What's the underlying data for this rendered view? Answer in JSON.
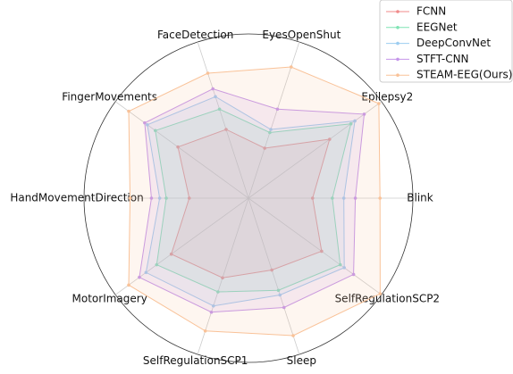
{
  "chart_data": {
    "type": "radar",
    "categories": [
      "Blink",
      "Epilepsy2",
      "EyesOpenShut",
      "FaceDetection",
      "FingerMovements",
      "HandMovementDirection",
      "MotorImagery",
      "SelfRegulationSCP1",
      "Sleep",
      "SelfRegulationSCP2"
    ],
    "ylim": [
      0,
      1
    ],
    "legend": "upper right",
    "series": [
      {
        "name": "FCNN",
        "color": "#f08a8a",
        "values": [
          0.39,
          0.61,
          0.32,
          0.44,
          0.53,
          0.36,
          0.58,
          0.51,
          0.46,
          0.55
        ]
      },
      {
        "name": "EEGNet",
        "color": "#7fe3b4",
        "values": [
          0.51,
          0.77,
          0.42,
          0.57,
          0.7,
          0.5,
          0.69,
          0.6,
          0.59,
          0.69
        ]
      },
      {
        "name": "DeepConvNet",
        "color": "#9ccdf0",
        "values": [
          0.58,
          0.8,
          0.44,
          0.65,
          0.76,
          0.54,
          0.77,
          0.69,
          0.62,
          0.72
        ]
      },
      {
        "name": "STFT-CNN",
        "color": "#c495ea",
        "values": [
          0.65,
          0.87,
          0.57,
          0.7,
          0.78,
          0.59,
          0.82,
          0.73,
          0.7,
          0.79
        ]
      },
      {
        "name": "STEAM-EEG(Ours)",
        "color": "#f9c298",
        "values": [
          0.8,
          0.98,
          0.84,
          0.8,
          0.9,
          0.72,
          0.9,
          0.85,
          0.88,
          0.99
        ]
      }
    ]
  }
}
